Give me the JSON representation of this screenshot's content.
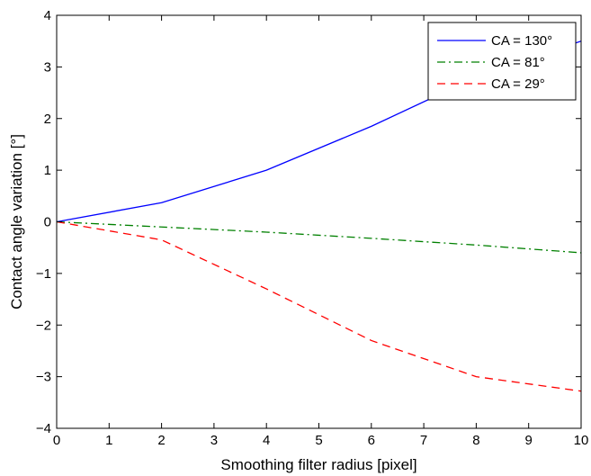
{
  "chart_data": {
    "type": "line",
    "title": "",
    "xlabel": "Smoothing filter radius [pixel]",
    "ylabel": "Contact angle variation [°]",
    "xlim": [
      0,
      10
    ],
    "ylim": [
      -4,
      4
    ],
    "xticks": [
      0,
      1,
      2,
      3,
      4,
      5,
      6,
      7,
      8,
      9,
      10
    ],
    "yticks": [
      -4,
      -3,
      -2,
      -1,
      0,
      1,
      2,
      3,
      4
    ],
    "xtick_labels": [
      "0",
      "1",
      "2",
      "3",
      "4",
      "5",
      "6",
      "7",
      "8",
      "9",
      "10"
    ],
    "ytick_labels": [
      "−4",
      "−3",
      "−2",
      "−1",
      "0",
      "1",
      "2",
      "3",
      "4"
    ],
    "grid": false,
    "legend_position": "top-right",
    "series": [
      {
        "name": "CA = 130°",
        "color": "#0000ff",
        "dash": "solid",
        "x": [
          0,
          2,
          4,
          6,
          8,
          10
        ],
        "y": [
          0,
          0.37,
          1.0,
          1.85,
          2.8,
          3.5
        ]
      },
      {
        "name": "CA = 81°",
        "color": "#008000",
        "dash": "dashdot",
        "x": [
          0,
          2,
          4,
          6,
          8,
          10
        ],
        "y": [
          0,
          -0.1,
          -0.2,
          -0.32,
          -0.45,
          -0.6
        ]
      },
      {
        "name": "CA = 29°",
        "color": "#ff0000",
        "dash": "dashed",
        "x": [
          0,
          2,
          4,
          6,
          8,
          10
        ],
        "y": [
          0,
          -0.35,
          -1.3,
          -2.3,
          -3.0,
          -3.28
        ]
      }
    ]
  }
}
